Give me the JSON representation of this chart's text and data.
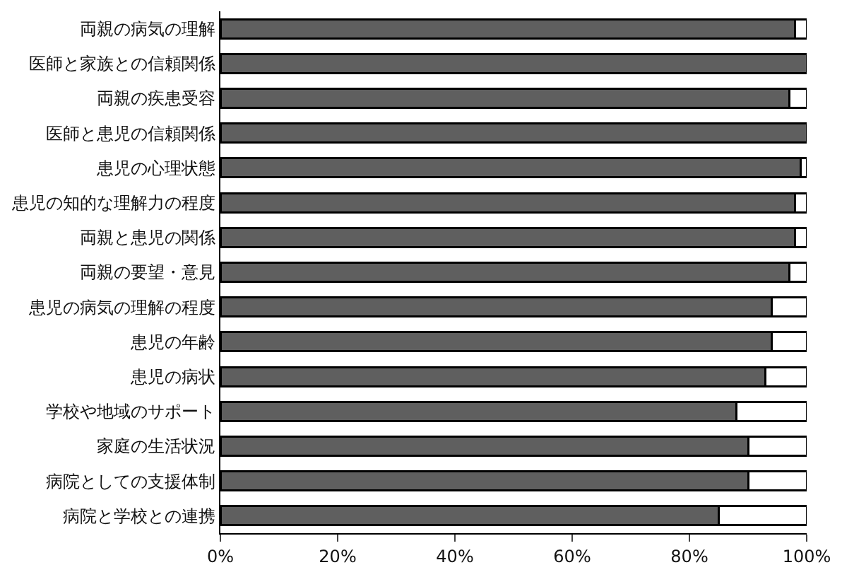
{
  "chart_data": {
    "type": "bar",
    "orientation": "horizontal",
    "stacked": true,
    "categories": [
      "両親の病気の理解",
      "医師と家族との信頼関係",
      "両親の疾患受容",
      "医師と患児の信頼関係",
      "患児の心理状態",
      "患児の知的な理解力の程度",
      "両親と患児の関係",
      "両親の要望・意見",
      "患児の病気の理解の程度",
      "患児の年齢",
      "患児の病状",
      "学校や地域のサポート",
      "家庭の生活状況",
      "病院としての支援体制",
      "病院と学校との連携"
    ],
    "series": [
      {
        "color": "#5f5f5f",
        "values": [
          98,
          100,
          97,
          100,
          99,
          98,
          98,
          97,
          94,
          94,
          93,
          88,
          90,
          90,
          85
        ]
      },
      {
        "color": "#ffffff",
        "values": [
          2,
          0,
          3,
          0,
          1,
          2,
          2,
          3,
          6,
          6,
          7,
          12,
          10,
          10,
          15
        ]
      }
    ],
    "xlim": [
      0,
      100
    ],
    "xticks": [
      {
        "value": 0,
        "label": "0%"
      },
      {
        "value": 20,
        "label": "20%"
      },
      {
        "value": 40,
        "label": "40%"
      },
      {
        "value": 60,
        "label": "60%"
      },
      {
        "value": 80,
        "label": "80%"
      },
      {
        "value": 100,
        "label": "100%"
      }
    ]
  }
}
